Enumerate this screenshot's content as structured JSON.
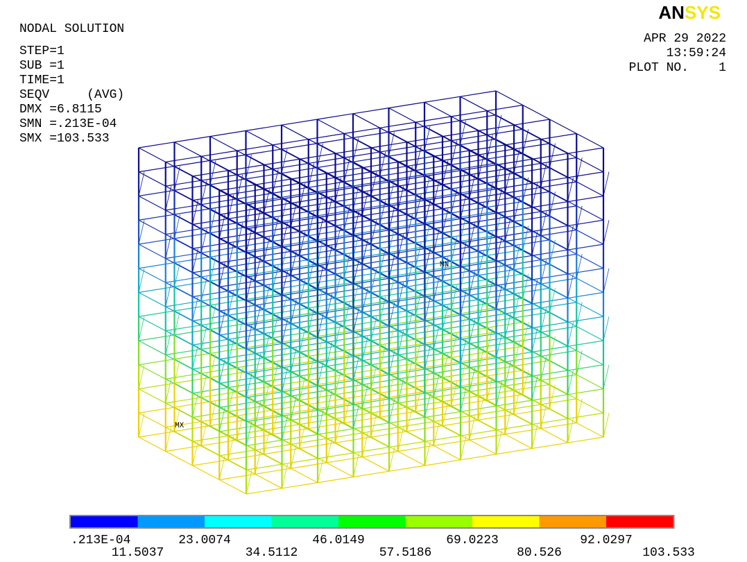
{
  "logo": [
    "AN",
    "SYS"
  ],
  "info": [
    "NODAL SOLUTION",
    "STEP=1",
    "SUB =1",
    "TIME=1",
    "SEQV     (AVG)",
    "DMX =6.8115",
    "SMN =.213E-04",
    "SMX =103.533"
  ],
  "stamp": [
    "APR 29 2022",
    "13:59:24",
    "PLOT NO.    1"
  ],
  "markers": {
    "min": "MN",
    "max": "MX"
  },
  "legend": {
    "colors": [
      "#0000ff",
      "#0099ff",
      "#00ffff",
      "#00ff99",
      "#00ff00",
      "#99ff00",
      "#ffff00",
      "#ff9900",
      "#ff0000"
    ],
    "labels": [
      ".213E-04",
      "11.5037",
      "23.0074",
      "34.5112",
      "46.0149",
      "57.5186",
      "69.0223",
      "80.526",
      "92.0297",
      "103.533"
    ]
  }
}
